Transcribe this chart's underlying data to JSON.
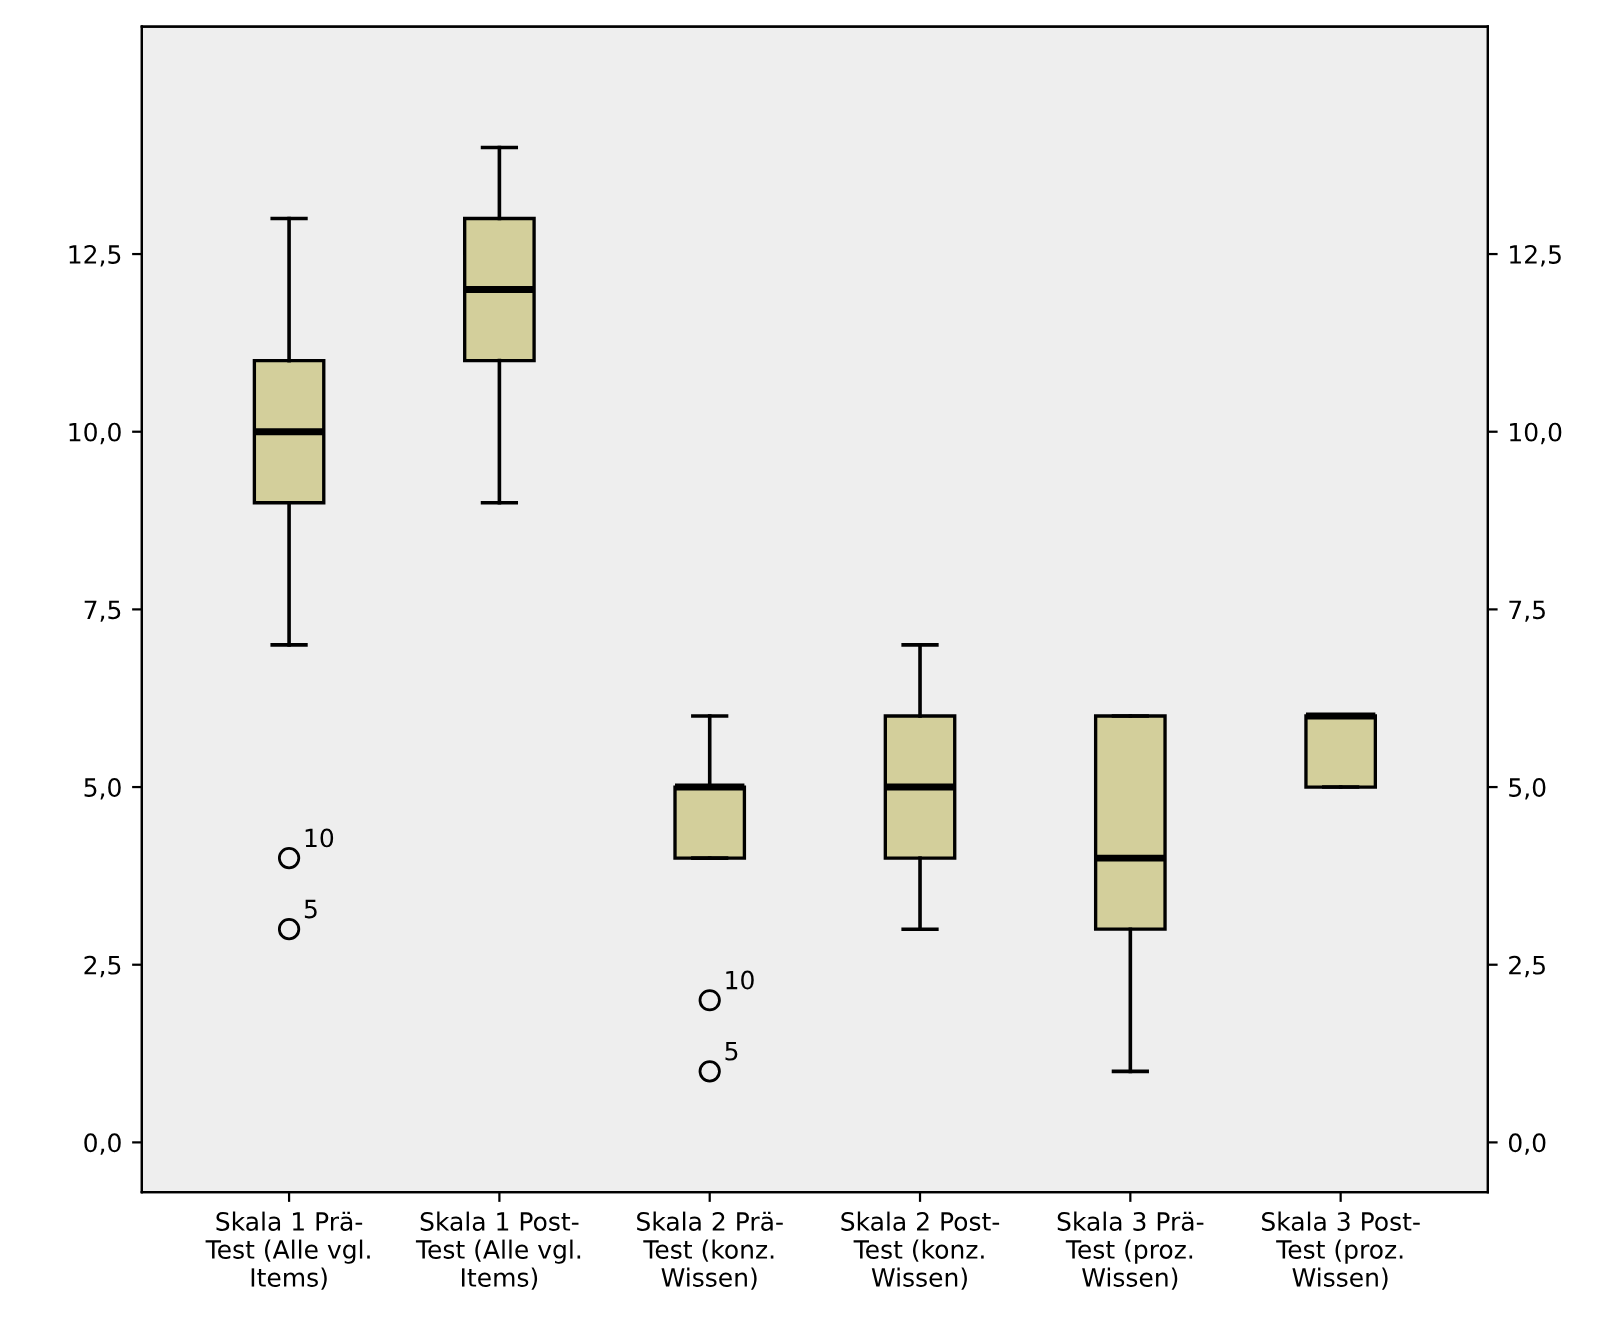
{
  "chart_data": {
    "type": "box",
    "categories": [
      "Skala 1 Prä-\nTest (Alle vgl.\nItems)",
      "Skala 1 Post-\nTest (Alle vgl.\nItems)",
      "Skala 2 Prä-\nTest (konz.\nWissen)",
      "Skala 2 Post-\nTest (konz.\nWissen)",
      "Skala 3 Prä-\nTest (proz.\nWissen)",
      "Skala 3 Post-\nTest (proz.\nWissen)"
    ],
    "boxes": [
      {
        "low": 7,
        "q1": 9,
        "median": 10,
        "q3": 11,
        "high": 13,
        "outliers": [
          3,
          4
        ]
      },
      {
        "low": 9,
        "q1": 11,
        "median": 12,
        "q3": 13,
        "high": 14
      },
      {
        "low": 4,
        "q1": 4,
        "median": 5,
        "q3": 5,
        "high": 6,
        "outliers": [
          1,
          2
        ]
      },
      {
        "low": 3,
        "q1": 4,
        "median": 5,
        "q3": 6,
        "high": 7
      },
      {
        "low": 1,
        "q1": 3,
        "median": 4,
        "q3": 6,
        "high": 6
      },
      {
        "low": 5,
        "q1": 5,
        "median": 6,
        "q3": 6,
        "high": 6
      }
    ],
    "color": "#d3cf9b",
    "ylim": [
      -0.7,
      15.7
    ],
    "yticks": [
      {
        "value": 0,
        "label": "0,0"
      },
      {
        "value": 2.5,
        "label": "2,5"
      },
      {
        "value": 5,
        "label": "5,0"
      },
      {
        "value": 7.5,
        "label": "7,5"
      },
      {
        "value": 10,
        "label": "10,0"
      },
      {
        "value": 12.5,
        "label": "12,5"
      }
    ],
    "y2lim": [
      -0.7,
      15.7
    ],
    "y2ticks": [
      {
        "value": 0,
        "label": "0,0"
      },
      {
        "value": 2.5,
        "label": "2,5"
      },
      {
        "value": 5,
        "label": "5,0"
      },
      {
        "value": 7.5,
        "label": "7,5"
      },
      {
        "value": 10,
        "label": "10,0"
      },
      {
        "value": 12.5,
        "label": "12,5"
      }
    ],
    "annotations": [
      "10",
      "5",
      "10",
      "5"
    ],
    "grid": false,
    "legend": false
  }
}
